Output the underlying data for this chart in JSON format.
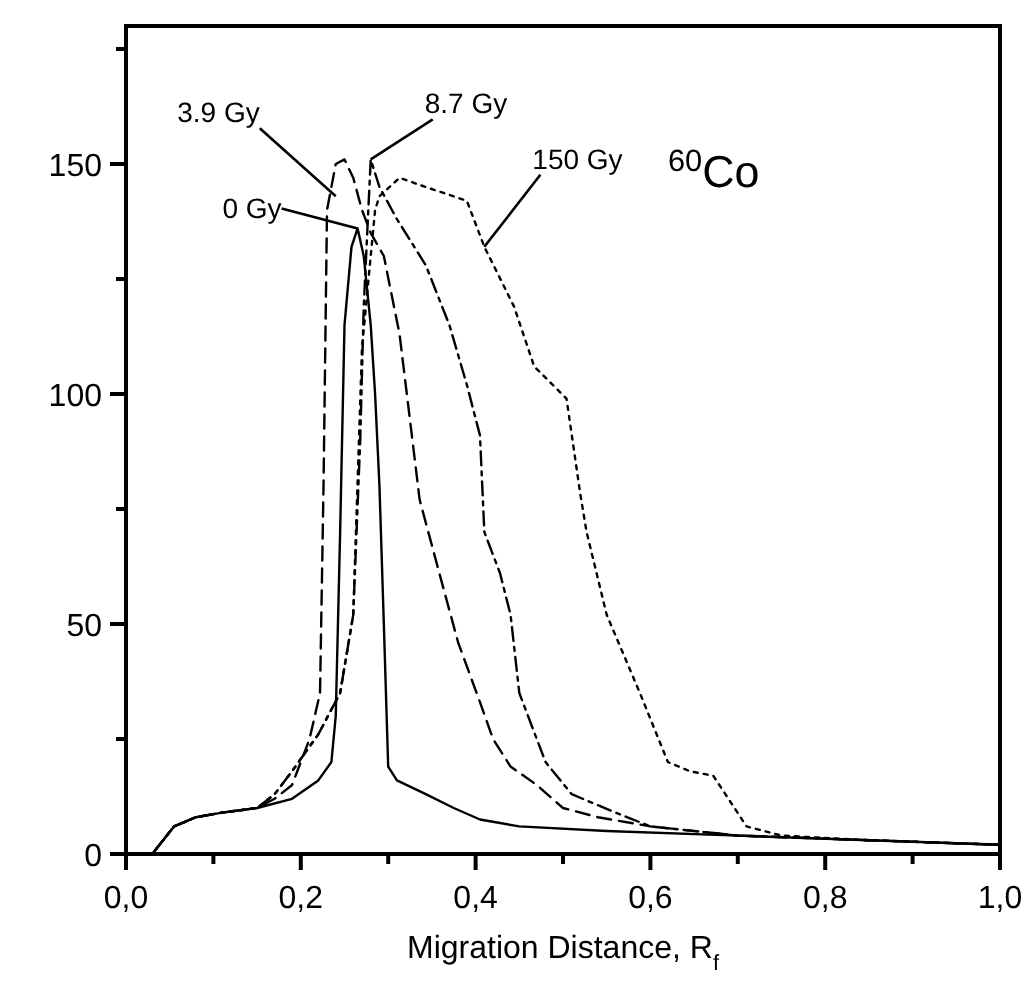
{
  "chart_data": {
    "type": "line",
    "xlabel": "Migration Distance, R$_{f}$",
    "xlim": [
      0,
      1.0
    ],
    "xticks": [
      {
        "value": 0,
        "label": "0,0"
      },
      {
        "value": 0.1,
        "label": null
      },
      {
        "value": 0.2,
        "label": "0,2"
      },
      {
        "value": 0.3,
        "label": null
      },
      {
        "value": 0.4,
        "label": "0,4"
      },
      {
        "value": 0.5,
        "label": null
      },
      {
        "value": 0.6,
        "label": "0,6"
      },
      {
        "value": 0.7,
        "label": null
      },
      {
        "value": 0.8,
        "label": "0,8"
      },
      {
        "value": 0.9,
        "label": null
      },
      {
        "value": 1.0,
        "label": "1,0"
      }
    ],
    "ylim": [
      0,
      180
    ],
    "yticks": [
      0,
      {
        "value": 25,
        "label": null
      },
      50,
      {
        "value": 75,
        "label": null
      },
      100,
      {
        "value": 125,
        "label": null
      },
      150,
      {
        "value": 175,
        "label": null
      }
    ],
    "grid": false,
    "marker": "none",
    "series": [
      {
        "color": "#000000",
        "line_style": "solid",
        "x": [
          0,
          0.03,
          0.055,
          0.08,
          0.11,
          0.15,
          0.19,
          0.22,
          0.235,
          0.24,
          0.245,
          0.25,
          0.258,
          0.265,
          0.272,
          0.28,
          0.285,
          0.29,
          0.295,
          0.3,
          0.31,
          0.343,
          0.375,
          0.405,
          0.45,
          0.55,
          0.7,
          0.85,
          1.0
        ],
        "values": [
          0,
          0,
          6,
          8,
          9,
          10,
          12,
          16,
          20,
          30,
          70,
          115,
          132,
          136,
          130,
          115,
          100,
          80,
          50,
          19,
          16,
          13,
          10,
          7.5,
          6,
          5,
          4,
          3,
          2
        ]
      },
      {
        "color": "#000000",
        "line_style": "dashed",
        "x": [
          0,
          0.03,
          0.055,
          0.08,
          0.11,
          0.15,
          0.17,
          0.19,
          0.21,
          0.222,
          0.226,
          0.23,
          0.24,
          0.25,
          0.26,
          0.27,
          0.28,
          0.295,
          0.313,
          0.336,
          0.36,
          0.38,
          0.405,
          0.42,
          0.44,
          0.47,
          0.5,
          0.54,
          0.6,
          0.7,
          0.85,
          1.0
        ],
        "values": [
          0,
          0,
          6,
          8,
          9,
          10,
          12,
          15,
          25,
          35,
          80,
          140,
          150,
          151,
          147,
          140,
          135,
          130,
          113,
          77,
          60,
          46,
          33,
          25,
          19,
          15,
          10,
          8,
          6,
          4,
          3,
          2
        ]
      },
      {
        "color": "#000000",
        "line_style": "dashdot",
        "x": [
          0,
          0.03,
          0.055,
          0.08,
          0.11,
          0.15,
          0.17,
          0.19,
          0.22,
          0.245,
          0.26,
          0.268,
          0.272,
          0.28,
          0.29,
          0.31,
          0.343,
          0.37,
          0.39,
          0.405,
          0.41,
          0.428,
          0.44,
          0.45,
          0.48,
          0.51,
          0.56,
          0.6,
          0.7,
          0.85,
          1.0
        ],
        "values": [
          0,
          0,
          6,
          8,
          9,
          10,
          13,
          18,
          26,
          35,
          52,
          90,
          119,
          151,
          145,
          138,
          128,
          115,
          102,
          91,
          70,
          61,
          52,
          35,
          20,
          13,
          9,
          6,
          4,
          3,
          2
        ]
      },
      {
        "color": "#000000",
        "line_style": "dotted",
        "x": [
          0,
          0.03,
          0.055,
          0.08,
          0.11,
          0.15,
          0.17,
          0.19,
          0.22,
          0.245,
          0.26,
          0.27,
          0.285,
          0.29,
          0.313,
          0.343,
          0.39,
          0.41,
          0.444,
          0.467,
          0.504,
          0.52,
          0.527,
          0.55,
          0.588,
          0.62,
          0.645,
          0.672,
          0.71,
          0.75,
          0.85,
          1.0
        ],
        "values": [
          0,
          0,
          6,
          8,
          9,
          10,
          13,
          18,
          26,
          35,
          52,
          110,
          140,
          143,
          147,
          145,
          142,
          132,
          119,
          106,
          99,
          78,
          70,
          52,
          35,
          20,
          18,
          17,
          6,
          4,
          3,
          2
        ]
      }
    ],
    "annotations": [
      {
        "text": "3.9 Gy",
        "x": 0.24,
        "y": 143
      },
      {
        "text": "8.7 Gy",
        "x": 0.28,
        "y": 151
      },
      {
        "text": "0 Gy",
        "x": 0.265,
        "y": 136
      },
      {
        "text": "150 Gy",
        "x": 0.41,
        "y": 132
      },
      "$^{60}$Co"
    ]
  }
}
